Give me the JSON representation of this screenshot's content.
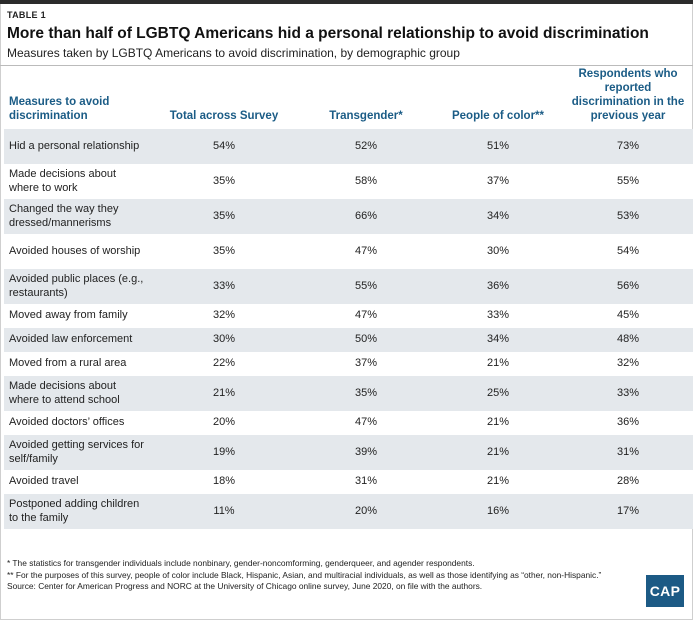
{
  "header": {
    "label": "TABLE 1",
    "title": "More than half of LGBTQ Americans hid a personal relationship to avoid discrimination",
    "subtitle": "Measures taken by LGBTQ Americans to avoid discrimination, by demographic group"
  },
  "table": {
    "columns": [
      "Measures to avoid discrimination",
      "Total across Survey",
      "Transgender*",
      "People of color**",
      "Respondents who reported discrimination in the previous year"
    ],
    "rows": [
      {
        "measure": "Hid a personal relationship",
        "total": "54%",
        "trans": "52%",
        "poc": "51%",
        "recent": "73%"
      },
      {
        "measure": "Made decisions about where to work",
        "total": "35%",
        "trans": "58%",
        "poc": "37%",
        "recent": "55%"
      },
      {
        "measure": "Changed the way they dressed/mannerisms",
        "total": "35%",
        "trans": "66%",
        "poc": "34%",
        "recent": "53%"
      },
      {
        "measure": "Avoided houses of worship",
        "total": "35%",
        "trans": "47%",
        "poc": "30%",
        "recent": "54%"
      },
      {
        "measure": "Avoided public places (e.g., restaurants)",
        "total": "33%",
        "trans": "55%",
        "poc": "36%",
        "recent": "56%"
      },
      {
        "measure": "Moved away from family",
        "total": "32%",
        "trans": "47%",
        "poc": "33%",
        "recent": "45%"
      },
      {
        "measure": "Avoided law enforcement",
        "total": "30%",
        "trans": "50%",
        "poc": "34%",
        "recent": "48%"
      },
      {
        "measure": "Moved from a rural area",
        "total": "22%",
        "trans": "37%",
        "poc": "21%",
        "recent": "32%"
      },
      {
        "measure": "Made decisions about where to attend school",
        "total": "21%",
        "trans": "35%",
        "poc": "25%",
        "recent": "33%"
      },
      {
        "measure": "Avoided doctors’ offices",
        "total": "20%",
        "trans": "47%",
        "poc": "21%",
        "recent": "36%"
      },
      {
        "measure": "Avoided getting services for self/family",
        "total": "19%",
        "trans": "39%",
        "poc": "21%",
        "recent": "31%"
      },
      {
        "measure": "Avoided travel",
        "total": "18%",
        "trans": "31%",
        "poc": "21%",
        "recent": "28%"
      },
      {
        "measure": "Postponed adding children to the family",
        "total": "11%",
        "trans": "20%",
        "poc": "16%",
        "recent": "17%"
      }
    ]
  },
  "notes": {
    "note1": "* The statistics for transgender individuals include nonbinary, gender-noncomforming, genderqueer, and agender respondents.",
    "note2": "** For the purposes of this survey, people of color include Black, Hispanic, Asian, and multiracial individuals, as well as those identifying as “other, non-Hispanic.”",
    "source": "Source: Center for American Progress and NORC at the University of Chicago online survey, June 2020, on file with the authors."
  },
  "logo": {
    "text": "CAP"
  },
  "colors": {
    "header_text": "#1b5c86",
    "stripe": "#e4e8ec",
    "logo_bg": "#1c5a85"
  }
}
